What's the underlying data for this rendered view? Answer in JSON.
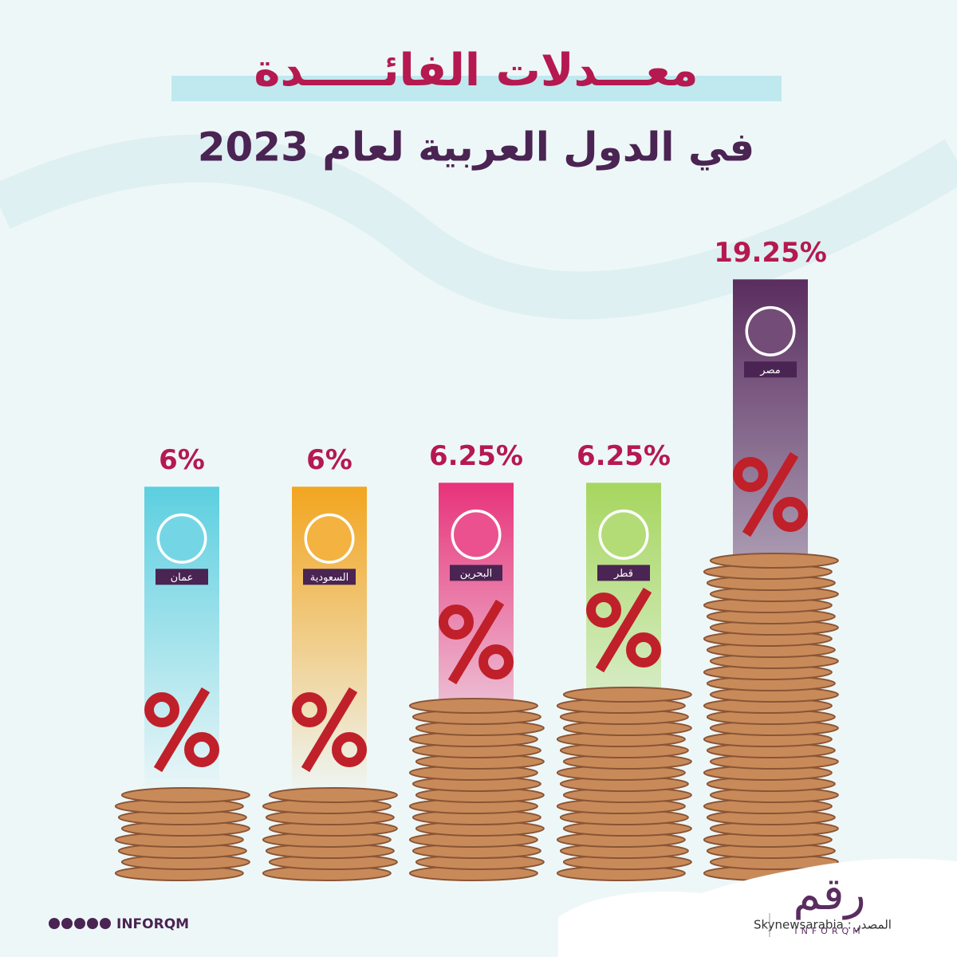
{
  "chart_data": {
    "type": "bar",
    "title": "معـــدلات الفائـــــدة",
    "subtitle": "في الدول العربية لعام 2023",
    "categories": [
      "عمان",
      "السعودية",
      "البحرين",
      "قطر",
      "مصر"
    ],
    "values": [
      6,
      6,
      6.25,
      6.25,
      19.25
    ],
    "value_labels": [
      "6%",
      "6%",
      "6.25%",
      "6.25%",
      "19.25%"
    ],
    "colors": [
      "#5ccfe0",
      "#f2a51f",
      "#e8337a",
      "#a6d65e",
      "#5a2d5f"
    ]
  },
  "footer": {
    "handle": "INFORQM",
    "source": "المصدر : Skynewsarabia",
    "logo": "رقم",
    "logo_sub": "INFORQM"
  }
}
